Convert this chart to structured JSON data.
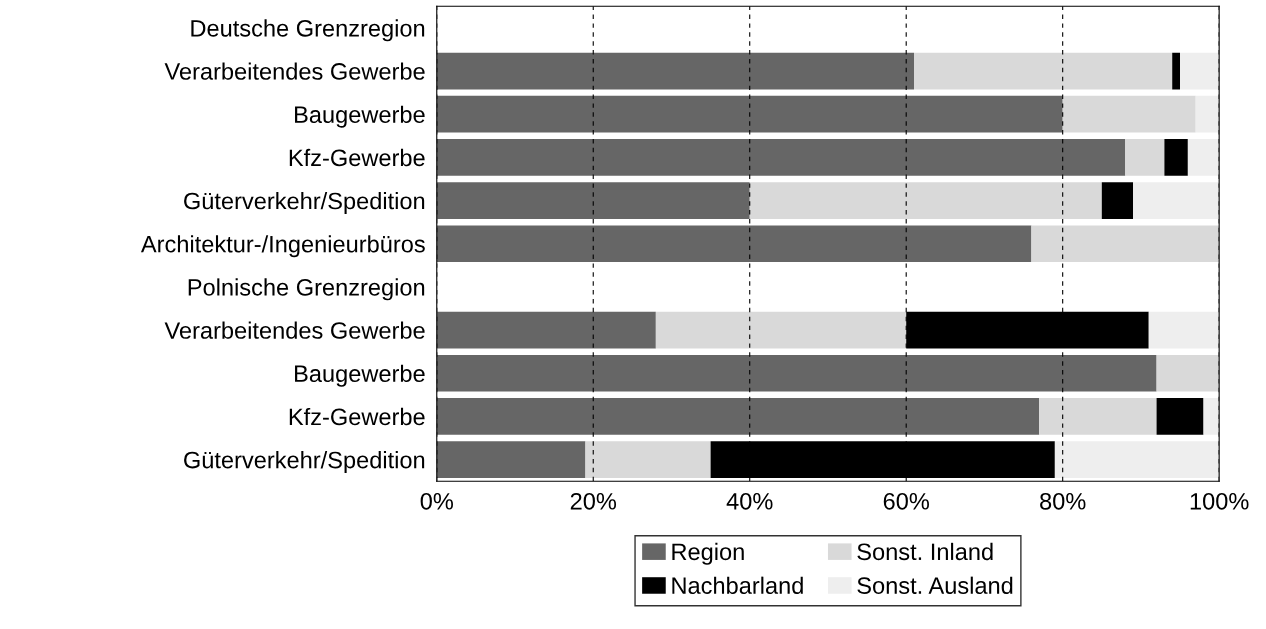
{
  "chart_data": {
    "type": "bar",
    "orientation": "horizontal",
    "stacked": true,
    "categories": [
      "Deutsche Grenzregion",
      "Verarbeitendes Gewerbe",
      "Baugewerbe",
      "Kfz-Gewerbe",
      "Güterverkehr/Spedition",
      "Architektur-/Ingenieurbüros",
      "Polnische Grenzregion",
      "Verarbeitendes Gewerbe",
      "Baugewerbe",
      "Kfz-Gewerbe",
      "Güterverkehr/Spedition"
    ],
    "series": [
      {
        "name": "Region",
        "color": "#666666",
        "values": [
          null,
          61,
          80,
          88,
          40,
          76,
          null,
          28,
          92,
          77,
          19
        ]
      },
      {
        "name": "Sonst. Inland",
        "color": "#d9d9d9",
        "values": [
          null,
          33,
          17,
          5,
          45,
          24,
          null,
          32,
          8,
          15,
          16
        ]
      },
      {
        "name": "Nachbarland",
        "color": "#000000",
        "values": [
          null,
          1,
          0,
          3,
          4,
          0,
          null,
          31,
          0,
          6,
          44
        ]
      },
      {
        "name": "Sonst. Ausland",
        "color": "#eeeeee",
        "values": [
          null,
          5,
          3,
          4,
          11,
          0,
          null,
          9,
          0,
          2,
          21
        ]
      }
    ],
    "xlim": [
      0,
      100
    ],
    "xticks": [
      {
        "value": 0,
        "label": "0%"
      },
      {
        "value": 20,
        "label": "20%"
      },
      {
        "value": 40,
        "label": "40%"
      },
      {
        "value": 60,
        "label": "60%"
      },
      {
        "value": 80,
        "label": "80%"
      },
      {
        "value": 100,
        "label": "100%"
      }
    ],
    "grid": "x",
    "legend": "bottom"
  }
}
